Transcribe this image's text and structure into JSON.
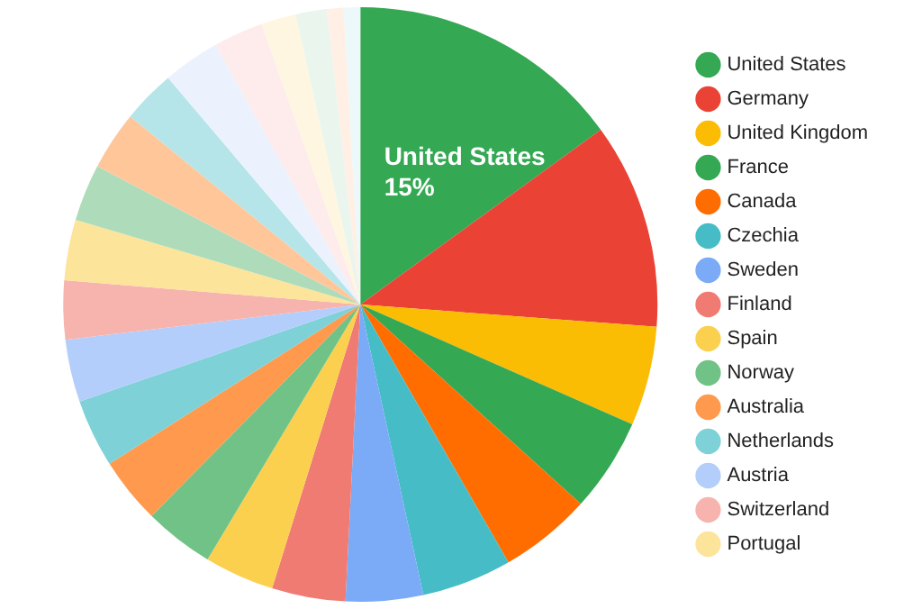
{
  "chart_data": {
    "type": "pie",
    "categories": [
      "United States",
      "Germany",
      "United Kingdom",
      "France",
      "Canada",
      "Czechia",
      "Sweden",
      "Finland",
      "Spain",
      "Norway",
      "Australia",
      "Netherlands",
      "Austria",
      "Switzerland",
      "Portugal",
      null,
      null,
      null,
      null,
      null,
      null,
      null,
      null,
      null
    ],
    "values": [
      15,
      11.2,
      5.4,
      5.1,
      5.0,
      4.9,
      4.2,
      4.0,
      3.8,
      3.8,
      3.6,
      3.7,
      3.4,
      3.2,
      3.3,
      3.1,
      3.2,
      2.9,
      3.1,
      2.7,
      1.9,
      1.7,
      0.9,
      0.9
    ],
    "colors": [
      "#34a853",
      "#ea4335",
      "#fbbc04",
      "#34a853",
      "#ff6d01",
      "#46bdc6",
      "#7baaf7",
      "#f07b72",
      "#fcd04f",
      "#71c287",
      "#ff994d",
      "#7ed1d7",
      "#b3cefb",
      "#f7b4ae",
      "#fde49b",
      "#aedcba",
      "#ffc69a",
      "#b5e5e8",
      "#ebf2fd",
      "#fdeceb",
      "#fef6e0",
      "#eaf6ed",
      "#ffefe5",
      "#ecf8f9"
    ],
    "value_labels": [
      "15%",
      null,
      null,
      null,
      null,
      null,
      null,
      null,
      null,
      null,
      null,
      null,
      null,
      null,
      null,
      null,
      null,
      null,
      null,
      null,
      null,
      null,
      null,
      null
    ],
    "legend": "right"
  }
}
